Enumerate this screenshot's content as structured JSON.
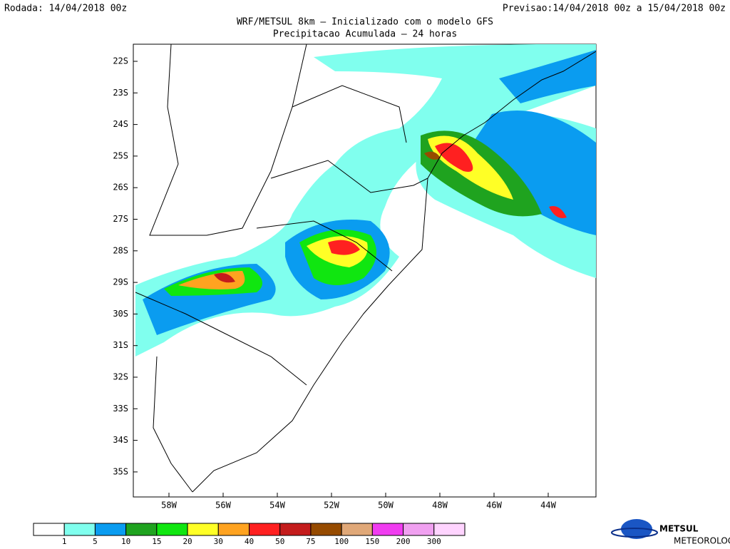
{
  "header": {
    "left": "Rodada: 14/04/2018 00z",
    "right": "Previsao:14/04/2018 00z a 15/04/2018 00z",
    "title": "WRF/METSUL 8km – Inicializado com o modelo GFS",
    "subtitle": "Precipitacao Acumulada – 24 horas"
  },
  "map": {
    "lat_labels": [
      "22S",
      "23S",
      "24S",
      "25S",
      "26S",
      "27S",
      "28S",
      "29S",
      "30S",
      "31S",
      "32S",
      "33S",
      "34S",
      "35S"
    ],
    "lon_labels": [
      "58W",
      "56W",
      "54W",
      "52W",
      "50W",
      "48W",
      "46W",
      "44W"
    ]
  },
  "colorbar": {
    "colors": [
      "#ffffff",
      "#80ffee",
      "#0a9cf0",
      "#1fa31f",
      "#10e610",
      "#ffff26",
      "#ffa320",
      "#ff2020",
      "#c41c1c",
      "#964b00",
      "#e0a878",
      "#f03cf0",
      "#f0a0f0",
      "#ffd4ff"
    ],
    "labels": [
      "1",
      "5",
      "10",
      "15",
      "20",
      "30",
      "40",
      "50",
      "75",
      "100",
      "150",
      "200",
      "300"
    ]
  },
  "logo": {
    "name": "METSUL",
    "tagline": "METEOROLOGIA"
  }
}
